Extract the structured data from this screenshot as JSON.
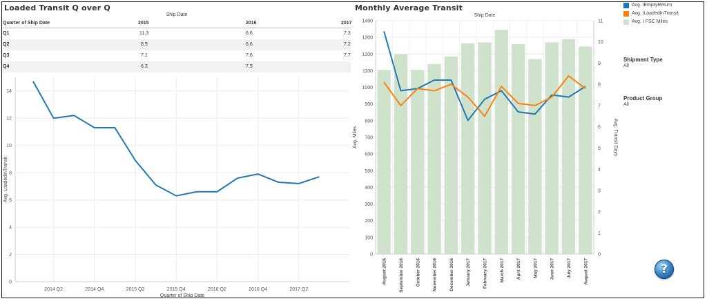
{
  "left_title": "Loaded Transit Q over Q",
  "right_title": "Monthly Average Transit",
  "table": {
    "group_header": "Ship Date",
    "row_header": "Quarter of Ship Date",
    "columns": [
      "2015",
      "2016",
      "2017"
    ],
    "rows": [
      {
        "label": "Q1",
        "values": [
          "11.3",
          "6.6",
          "7.3"
        ]
      },
      {
        "label": "Q2",
        "values": [
          "8.9",
          "6.6",
          "7.2"
        ]
      },
      {
        "label": "Q3",
        "values": [
          "7.1",
          "7.6",
          "7.7"
        ]
      },
      {
        "label": "Q4",
        "values": [
          "6.3",
          "7.9",
          ""
        ]
      }
    ]
  },
  "legend": [
    {
      "label": "Avg. iEmptyReturn",
      "color": "#1f77b4"
    },
    {
      "label": "Avg. iLoadedInTransit",
      "color": "#ff7f0e"
    },
    {
      "label": "Avg. I FSC Miles",
      "color": "#cfe3cc"
    }
  ],
  "filters": [
    {
      "title": "Shipment Type",
      "value": "All"
    },
    {
      "title": "Product Group",
      "value": "All"
    }
  ],
  "help_glyph": "?",
  "chart_data": [
    {
      "type": "line",
      "title": "",
      "xlabel": "Quarter of Ship Date",
      "ylabel": "Avg. LoadedInTransit",
      "ylim": [
        0,
        15
      ],
      "yticks": [
        0,
        2,
        4,
        6,
        8,
        10,
        12,
        14
      ],
      "xtick_labels": [
        "2014 Q2",
        "2014 Q4",
        "2015 Q2",
        "2015 Q4",
        "2016 Q2",
        "2016 Q4",
        "2017 Q2"
      ],
      "x": [
        "2014 Q1",
        "2014 Q2",
        "2014 Q3",
        "2014 Q4",
        "2015 Q1",
        "2015 Q2",
        "2015 Q3",
        "2015 Q4",
        "2016 Q1",
        "2016 Q2",
        "2016 Q3",
        "2016 Q4",
        "2017 Q1",
        "2017 Q2",
        "2017 Q3"
      ],
      "series": [
        {
          "color": "#1f77b4",
          "values": [
            14.7,
            12.0,
            12.2,
            11.3,
            11.3,
            8.9,
            7.1,
            6.3,
            6.6,
            6.6,
            7.6,
            7.9,
            7.3,
            7.2,
            7.7
          ]
        }
      ],
      "grid": true
    },
    {
      "type": "bar",
      "title": "Ship Date",
      "xlabel": "",
      "ylabel": "Avg. Miles",
      "y2label": "Avg. Transit Days",
      "ylim": [
        0,
        1400
      ],
      "yticks": [
        0,
        100,
        200,
        300,
        400,
        500,
        600,
        700,
        800,
        900,
        1000,
        1100,
        1200,
        1300,
        1400
      ],
      "y2lim": [
        0,
        11
      ],
      "y2ticks": [
        0,
        1,
        2,
        3,
        4,
        5,
        6,
        7,
        8,
        9,
        10,
        11
      ],
      "categories": [
        "August 2016",
        "September 2016",
        "October 2016",
        "November 2016",
        "December 2016",
        "January 2017",
        "February 2017",
        "March 2017",
        "April 2017",
        "May 2017",
        "June 2017",
        "July 2017",
        "August 2017"
      ],
      "series": [
        {
          "name": "Avg. I FSC Miles",
          "axis": "left",
          "kind": "bar",
          "color": "#cfe3cc",
          "values": [
            1105,
            1200,
            1105,
            1140,
            1185,
            1265,
            1270,
            1345,
            1260,
            1170,
            1270,
            1290,
            1245
          ]
        },
        {
          "name": "Avg. iEmptyReturn",
          "axis": "right",
          "kind": "line",
          "color": "#1f77b4",
          "values": [
            10.5,
            7.7,
            7.8,
            8.2,
            8.2,
            6.3,
            7.3,
            7.7,
            6.7,
            6.6,
            7.5,
            7.4,
            7.9
          ]
        },
        {
          "name": "Avg. iLoadedInTransit",
          "axis": "right",
          "kind": "line",
          "color": "#ff7f0e",
          "values": [
            8.1,
            7.0,
            7.8,
            7.7,
            8.0,
            7.4,
            6.5,
            7.9,
            7.1,
            7.0,
            7.4,
            8.4,
            7.8
          ]
        }
      ],
      "grid": true
    }
  ]
}
